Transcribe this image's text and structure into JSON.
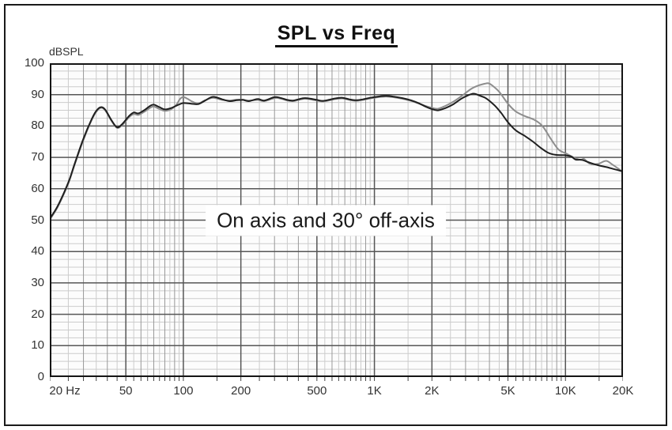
{
  "window": {
    "background": "#ffffff",
    "border_color": "#1a1a1a"
  },
  "chart_data": {
    "type": "line",
    "title": "SPL vs Freq",
    "ylabel": "dBSPL",
    "annotation": "On axis and 30° off-axis",
    "x_scale": "log",
    "xlim": [
      20,
      20000
    ],
    "ylim": [
      0,
      100
    ],
    "y_major_step": 10,
    "y_minor_step": 2.5,
    "grid": "on",
    "legend_position": "none",
    "x_major_ticks": [
      {
        "f": 20,
        "label": "20 Hz",
        "dx": 19
      },
      {
        "f": 50,
        "label": "50"
      },
      {
        "f": 100,
        "label": "100"
      },
      {
        "f": 200,
        "label": "200"
      },
      {
        "f": 500,
        "label": "500"
      },
      {
        "f": 1000,
        "label": "1K"
      },
      {
        "f": 2000,
        "label": "2K"
      },
      {
        "f": 5000,
        "label": "5K"
      },
      {
        "f": 10000,
        "label": "10K"
      },
      {
        "f": 20000,
        "label": "20K"
      }
    ],
    "x_minor_mid": [
      30,
      40,
      60,
      70,
      80,
      90,
      300,
      400,
      600,
      700,
      800,
      900,
      3000,
      4000,
      6000,
      7000,
      8000,
      9000
    ],
    "x_minor_fine": [
      25,
      35,
      45,
      55,
      65,
      75,
      85,
      95,
      150,
      250,
      350,
      450,
      550,
      650,
      750,
      850,
      950,
      1500,
      2500,
      3500,
      4500,
      5500,
      6500,
      7500,
      8500,
      9500,
      15000
    ],
    "y_major_values": [
      100,
      90,
      80,
      70,
      60,
      50,
      40,
      30,
      20,
      10,
      0
    ],
    "colors": {
      "plot_background": "#fcfcfc",
      "grid_fine": "#cccccc",
      "grid_mid": "#999999",
      "grid_major": "#565656",
      "frame": "#141414",
      "tick": "#444444",
      "on_axis_curve": "#1f1f1f",
      "off_axis_curve": "#8d8d8d"
    },
    "series": [
      {
        "name": "On axis",
        "color_key": "on_axis_curve",
        "points": [
          [
            20,
            50.5
          ],
          [
            22,
            54.5
          ],
          [
            25,
            62
          ],
          [
            27,
            68
          ],
          [
            30,
            76
          ],
          [
            33,
            82
          ],
          [
            35,
            84.8
          ],
          [
            37,
            86
          ],
          [
            39,
            85.2
          ],
          [
            42,
            81.9
          ],
          [
            45,
            79.6
          ],
          [
            48,
            80.7
          ],
          [
            52,
            83.2
          ],
          [
            55,
            84.3
          ],
          [
            58,
            84.0
          ],
          [
            62,
            84.9
          ],
          [
            67,
            86.4
          ],
          [
            70,
            86.8
          ],
          [
            75,
            86.0
          ],
          [
            80,
            85.3
          ],
          [
            86,
            85.7
          ],
          [
            93,
            86.6
          ],
          [
            100,
            87.3
          ],
          [
            110,
            87.1
          ],
          [
            120,
            87.0
          ],
          [
            130,
            88.1
          ],
          [
            143,
            89.3
          ],
          [
            160,
            88.5
          ],
          [
            175,
            87.9
          ],
          [
            190,
            88.2
          ],
          [
            205,
            88.3
          ],
          [
            220,
            87.9
          ],
          [
            245,
            88.6
          ],
          [
            265,
            88.1
          ],
          [
            300,
            89.2
          ],
          [
            325,
            88.9
          ],
          [
            350,
            88.3
          ],
          [
            375,
            88.1
          ],
          [
            400,
            88.5
          ],
          [
            430,
            88.9
          ],
          [
            465,
            88.7
          ],
          [
            500,
            88.3
          ],
          [
            535,
            88.0
          ],
          [
            575,
            88.3
          ],
          [
            625,
            88.8
          ],
          [
            680,
            89.0
          ],
          [
            740,
            88.5
          ],
          [
            800,
            88.2
          ],
          [
            870,
            88.5
          ],
          [
            950,
            89.0
          ],
          [
            1050,
            89.4
          ],
          [
            1150,
            89.6
          ],
          [
            1250,
            89.4
          ],
          [
            1400,
            88.9
          ],
          [
            1550,
            88.2
          ],
          [
            1700,
            87.3
          ],
          [
            1850,
            86.2
          ],
          [
            2000,
            85.4
          ],
          [
            2150,
            85.0
          ],
          [
            2350,
            85.7
          ],
          [
            2600,
            87.0
          ],
          [
            2850,
            88.7
          ],
          [
            3050,
            89.6
          ],
          [
            3300,
            90.3
          ],
          [
            3550,
            89.7
          ],
          [
            3800,
            89.0
          ],
          [
            4000,
            88.0
          ],
          [
            4300,
            86.3
          ],
          [
            4600,
            84.2
          ],
          [
            5000,
            81.2
          ],
          [
            5500,
            78.6
          ],
          [
            6100,
            76.9
          ],
          [
            6700,
            75.2
          ],
          [
            7400,
            73.1
          ],
          [
            8100,
            71.5
          ],
          [
            8900,
            70.8
          ],
          [
            9900,
            70.7
          ],
          [
            10700,
            70.3
          ],
          [
            11300,
            69.3
          ],
          [
            12200,
            69.2
          ],
          [
            13400,
            68.3
          ],
          [
            14800,
            67.5
          ],
          [
            16400,
            66.9
          ],
          [
            18100,
            66.2
          ],
          [
            20000,
            65.5
          ]
        ]
      },
      {
        "name": "30° off-axis",
        "color_key": "off_axis_curve",
        "points": [
          [
            20,
            50.2
          ],
          [
            22,
            54.2
          ],
          [
            25,
            61.7
          ],
          [
            27,
            67.7
          ],
          [
            30,
            75.6
          ],
          [
            33,
            81.7
          ],
          [
            35,
            84.5
          ],
          [
            37,
            85.8
          ],
          [
            39,
            85.0
          ],
          [
            42,
            81.7
          ],
          [
            45,
            79.4
          ],
          [
            48,
            80.4
          ],
          [
            52,
            82.8
          ],
          [
            55,
            83.8
          ],
          [
            58,
            83.5
          ],
          [
            62,
            84.4
          ],
          [
            67,
            85.8
          ],
          [
            70,
            86.2
          ],
          [
            75,
            85.4
          ],
          [
            80,
            84.8
          ],
          [
            86,
            85.3
          ],
          [
            92,
            86.8
          ],
          [
            96,
            88.6
          ],
          [
            100,
            89.2
          ],
          [
            105,
            88.7
          ],
          [
            112,
            87.7
          ],
          [
            120,
            87.2
          ],
          [
            130,
            88.2
          ],
          [
            143,
            89.0
          ],
          [
            160,
            88.3
          ],
          [
            175,
            88.1
          ],
          [
            190,
            88.4
          ],
          [
            205,
            88.4
          ],
          [
            220,
            88.1
          ],
          [
            245,
            88.3
          ],
          [
            265,
            87.9
          ],
          [
            300,
            88.9
          ],
          [
            325,
            88.7
          ],
          [
            350,
            88.1
          ],
          [
            375,
            87.9
          ],
          [
            400,
            88.3
          ],
          [
            430,
            88.7
          ],
          [
            465,
            88.5
          ],
          [
            500,
            88.1
          ],
          [
            535,
            87.8
          ],
          [
            575,
            88.1
          ],
          [
            625,
            88.6
          ],
          [
            680,
            88.8
          ],
          [
            740,
            88.3
          ],
          [
            800,
            88.0
          ],
          [
            870,
            88.3
          ],
          [
            950,
            88.8
          ],
          [
            1050,
            89.2
          ],
          [
            1150,
            89.4
          ],
          [
            1250,
            89.2
          ],
          [
            1400,
            88.7
          ],
          [
            1550,
            88.0
          ],
          [
            1700,
            87.2
          ],
          [
            1850,
            86.4
          ],
          [
            2000,
            85.8
          ],
          [
            2150,
            85.5
          ],
          [
            2350,
            86.4
          ],
          [
            2600,
            87.8
          ],
          [
            2900,
            89.8
          ],
          [
            3200,
            91.8
          ],
          [
            3500,
            92.9
          ],
          [
            3800,
            93.5
          ],
          [
            3950,
            93.6
          ],
          [
            4100,
            93.1
          ],
          [
            4500,
            90.9
          ],
          [
            5000,
            87.1
          ],
          [
            5500,
            84.6
          ],
          [
            6100,
            83.2
          ],
          [
            6900,
            81.9
          ],
          [
            7600,
            79.9
          ],
          [
            8400,
            75.8
          ],
          [
            9200,
            72.5
          ],
          [
            10100,
            71.2
          ],
          [
            11100,
            69.9
          ],
          [
            12000,
            69.2
          ],
          [
            12500,
            69.5
          ],
          [
            13400,
            68.0
          ],
          [
            14800,
            67.9
          ],
          [
            16300,
            68.9
          ],
          [
            17500,
            67.8
          ],
          [
            18800,
            66.5
          ],
          [
            20000,
            65.3
          ]
        ]
      }
    ]
  }
}
